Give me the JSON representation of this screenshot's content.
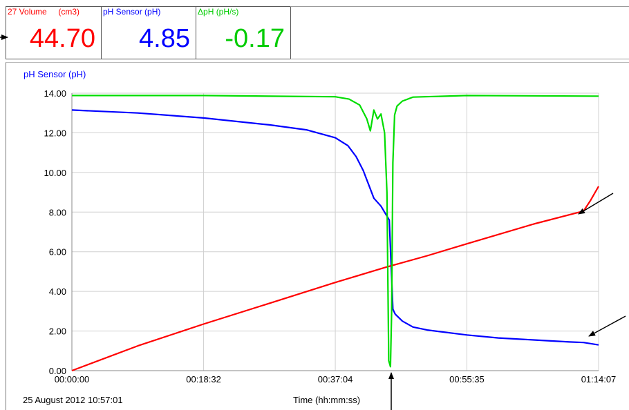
{
  "meters": [
    {
      "label": "27 Volume     (cm3)",
      "value": "44.70",
      "color": "#ff0000"
    },
    {
      "label": "pH Sensor (pH)",
      "value": "4.85",
      "color": "#0000ff"
    },
    {
      "label": "ΔpH (pH/s)",
      "value": "-0.17",
      "color": "#00cc00"
    }
  ],
  "chart_data": {
    "type": "line",
    "ylabel": "pH Sensor (pH)",
    "xlabel": "Time (hh:mm:ss)",
    "date_text": "25 August 2012  10:57:01",
    "ylim": [
      0,
      14
    ],
    "y_ticks": [
      "0.00",
      "2.00",
      "4.00",
      "6.00",
      "8.00",
      "10.00",
      "12.00",
      "14.00"
    ],
    "x_ticks": [
      "00:00:00",
      "00:18:32",
      "00:37:04",
      "00:55:35",
      "01:14:07"
    ],
    "grid": true,
    "series": [
      {
        "color": "#0000ff",
        "x": [
          "00:00:00",
          "00:09:16",
          "00:18:32",
          "00:27:48",
          "00:33:00",
          "00:37:04",
          "00:38:51",
          "00:40:00",
          "00:41:00",
          "00:42:30",
          "00:43:30",
          "00:44:40",
          "00:44:55",
          "00:45:10",
          "00:45:30",
          "00:46:30",
          "00:48:00",
          "00:50:00",
          "00:55:35",
          "01:00:00",
          "01:05:00",
          "01:10:00",
          "01:12:00",
          "01:14:07"
        ],
        "values": [
          13.15,
          13.0,
          12.75,
          12.4,
          12.15,
          11.75,
          11.35,
          10.8,
          10.1,
          8.7,
          8.3,
          7.6,
          5.4,
          3.1,
          2.85,
          2.5,
          2.2,
          2.05,
          1.8,
          1.65,
          1.55,
          1.45,
          1.42,
          1.3
        ]
      },
      {
        "color": "#ff0000",
        "x": [
          "00:00:00",
          "00:09:16",
          "00:18:32",
          "00:27:48",
          "00:37:04",
          "00:44:00",
          "00:50:00",
          "00:55:35",
          "01:05:00",
          "01:12:00",
          "01:13:00",
          "01:14:07"
        ],
        "values": [
          0.0,
          1.25,
          2.35,
          3.4,
          4.45,
          5.2,
          5.8,
          6.4,
          7.4,
          8.05,
          8.6,
          9.3
        ]
      },
      {
        "color": "#00dd00",
        "x": [
          "00:00:00",
          "00:18:32",
          "00:37:04",
          "00:39:00",
          "00:40:30",
          "00:41:30",
          "00:42:00",
          "00:42:30",
          "00:43:00",
          "00:43:30",
          "00:44:00",
          "00:44:20",
          "00:44:35",
          "00:44:50",
          "00:45:00",
          "00:45:10",
          "00:45:25",
          "00:45:45",
          "00:46:30",
          "00:48:00",
          "00:55:35",
          "01:14:07"
        ],
        "values": [
          13.88,
          13.88,
          13.82,
          13.7,
          13.4,
          12.7,
          12.1,
          13.15,
          12.7,
          12.95,
          12.0,
          9.0,
          0.5,
          0.2,
          3.0,
          10.5,
          12.9,
          13.35,
          13.6,
          13.8,
          13.88,
          13.85
        ]
      }
    ]
  },
  "colors": {
    "grid": "#d0d0d0",
    "arrow": "#000000"
  }
}
